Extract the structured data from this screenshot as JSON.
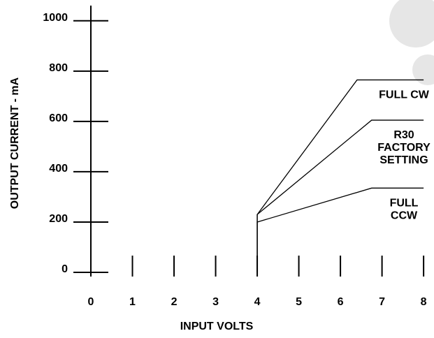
{
  "chart_data": {
    "type": "line",
    "xlabel": "INPUT VOLTS",
    "ylabel": "OUTPUT CURRENT - mA",
    "xlim": [
      0,
      8.25
    ],
    "ylim": [
      0,
      1055
    ],
    "xticks": [
      0,
      1,
      2,
      3,
      4,
      5,
      6,
      7,
      8
    ],
    "yticks": [
      0,
      200,
      400,
      600,
      800,
      1000
    ],
    "color": "#000000",
    "series": [
      {
        "name": [
          "FULL CW"
        ],
        "x": [
          4,
          4,
          6.4,
          8
        ],
        "values": [
          0,
          230,
          765,
          765
        ]
      },
      {
        "name": [
          "R30",
          "FACTORY",
          "SETTING"
        ],
        "x": [
          4,
          4,
          6.75,
          8
        ],
        "values": [
          0,
          230,
          605,
          605
        ]
      },
      {
        "name": [
          "FULL",
          "CCW"
        ],
        "x": [
          4,
          4,
          6.75,
          8
        ],
        "values": [
          0,
          200,
          335,
          335
        ]
      }
    ]
  }
}
